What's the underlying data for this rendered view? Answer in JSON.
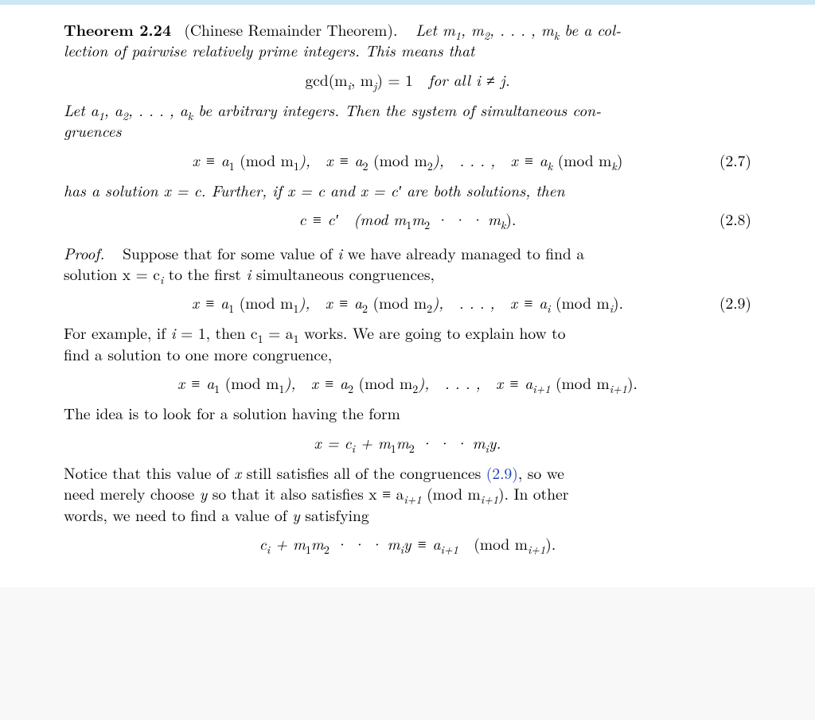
{
  "theorem": {
    "label": "Theorem 2.24",
    "name_paren": "(Chinese Remainder Theorem).",
    "stmt1a": "Let m",
    "stmt1b": ", m",
    "stmt1c": ", . . . , m",
    "stmt1d": " be a col-",
    "stmt2": "lection of pairwise relatively prime integers. This means that",
    "gcdline_a": "gcd(m",
    "gcdline_b": ", m",
    "gcdline_c": ") = 1 for all i ≠ j.",
    "let_a1": "Let a",
    "let_a2": ", a",
    "let_a3": ", . . . , a",
    "let_a4": " be arbitrary integers. Then the system of simultaneous con-",
    "let_b": "gruences",
    "eq27_a": "x ≡ a",
    "eq27_b": " (mod m",
    "eq27_c": "), x ≡ a",
    "eq27_d": " (mod m",
    "eq27_e": "), . . . , x ≡ a",
    "eq27_f": " (mod m",
    "eq27_g": ")",
    "eq27_no": "(2.7)",
    "has1": "has a solution x = c. Further, if x = c and x = c′ are both solutions, then",
    "eq28_a": "c ≡ c′ (mod m",
    "eq28_b": "m",
    "eq28_c": " · · · m",
    "eq28_d": ").",
    "eq28_no": "(2.8)"
  },
  "proof": {
    "label": "Proof.",
    "p1a": "Suppose that for some value of ",
    "p1b": " we have already managed to find a",
    "p2a": "solution x = c",
    "p2b": " to the first ",
    "p2c": " simultaneous congruences,",
    "eq29_a": "x ≡ a",
    "eq29_b": " (mod m",
    "eq29_c": "), x ≡ a",
    "eq29_d": " (mod m",
    "eq29_e": "), . . . , x ≡ a",
    "eq29_f": " (mod m",
    "eq29_g": ").",
    "eq29_no": "(2.9)",
    "fe1a": "For example, if ",
    "fe1b": " = 1, then c",
    "fe1c": " = a",
    "fe1d": " works. We are going to explain how to",
    "fe2": "find a solution to one more congruence,",
    "eqip1_a": "x ≡ a",
    "eqip1_b": " (mod m",
    "eqip1_c": "), x ≡ a",
    "eqip1_d": " (mod m",
    "eqip1_e": "), . . . , x ≡ a",
    "eqip1_f": " (mod m",
    "eqip1_g": ").",
    "idea": "The idea is to look for a solution having the form",
    "form_a": "x = c",
    "form_b": " + m",
    "form_c": "m",
    "form_d": " · · · m",
    "form_e": "y.",
    "notice1a": "Notice that this value of ",
    "notice1b": " still satisfies all of the congruences ",
    "notice1c": ", so we",
    "notice2a": "need merely choose ",
    "notice2b": " so that it also satisfies x ≡ a",
    "notice2c": " (mod m",
    "notice2d": "). In other",
    "notice3a": "words, we need to find a value of ",
    "notice3b": " satisfying",
    "ref29": "(2.9)",
    "last_a": "c",
    "last_b": " + m",
    "last_c": "m",
    "last_d": " · · · m",
    "last_e": "y ≡ a",
    "last_f": " (mod m",
    "last_g": ")."
  },
  "sub": {
    "one": "1",
    "two": "2",
    "k": "k",
    "i": "i",
    "j": "j",
    "ip1": "i+1"
  }
}
